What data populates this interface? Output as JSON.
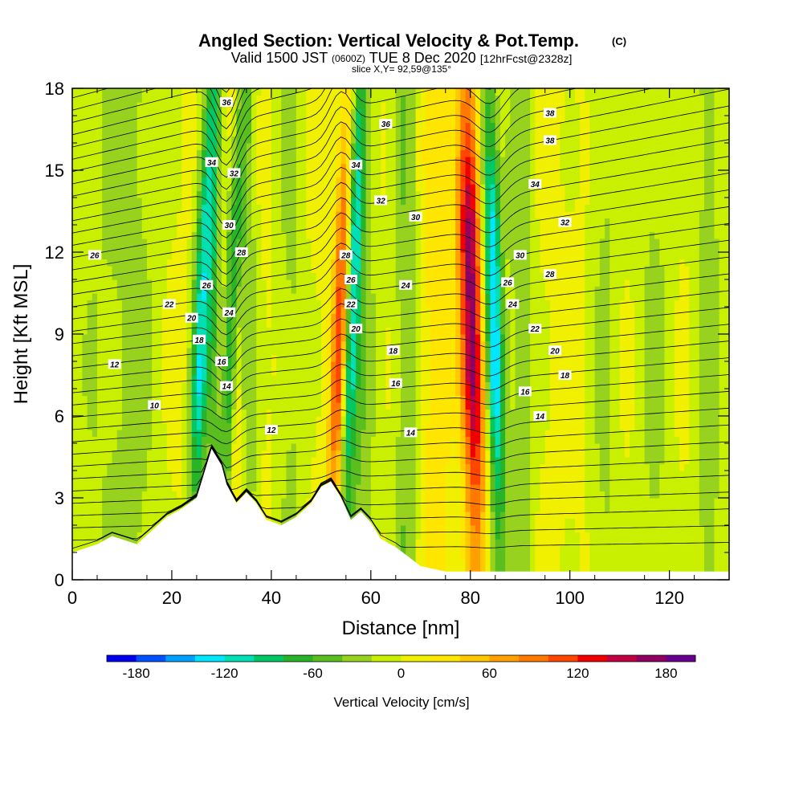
{
  "chart_data": {
    "type": "heatmap",
    "title": "Angled Section: Vertical Velocity & Pot.Temp.",
    "title_suffix": "(C)",
    "subtitle_parts": {
      "valid": "Valid 1500 JST",
      "zulu": "(0600Z)",
      "date": "TUE 8 Dec 2020",
      "fcst": "[12hrFcst@2328z]"
    },
    "slice": "slice X,Y= 92,59@135°",
    "xlabel": "Distance [nm]",
    "ylabel": "Height [Kft MSL]",
    "xlim": [
      0,
      132
    ],
    "ylim": [
      0,
      18
    ],
    "x_ticks": [
      "0",
      "20",
      "40",
      "60",
      "80",
      "100",
      "120"
    ],
    "y_ticks": [
      "0",
      "3",
      "6",
      "9",
      "12",
      "15",
      "18"
    ],
    "colorbar": {
      "label": "Vertical Velocity [cm/s]",
      "min": -200,
      "max": 200,
      "step": 20,
      "tick_labels": [
        "-180",
        "-120",
        "-60",
        "0",
        "60",
        "120",
        "180"
      ],
      "colors": [
        "#0000f0",
        "#0050ff",
        "#00a0ff",
        "#00e6ff",
        "#00e0b4",
        "#00c864",
        "#28b428",
        "#5abe1e",
        "#96d21e",
        "#c8f000",
        "#f0f000",
        "#ffe600",
        "#ffc800",
        "#ffa000",
        "#ff7800",
        "#ff4600",
        "#f00000",
        "#c00040",
        "#900060",
        "#6a0090"
      ]
    },
    "vertical_velocity_features": [
      {
        "x": 5,
        "w": 6,
        "v": -30
      },
      {
        "x": 13,
        "w": 5,
        "v": -40
      },
      {
        "x": 25,
        "w": 1.8,
        "v": -110
      },
      {
        "x": 28.5,
        "w": 1.2,
        "v": -70
      },
      {
        "x": 31,
        "w": 1.6,
        "v": -100
      },
      {
        "x": 33,
        "w": 1.8,
        "v": 70
      },
      {
        "x": 35,
        "w": 2,
        "v": -70
      },
      {
        "x": 44,
        "w": 3,
        "v": -40
      },
      {
        "x": 53,
        "w": 1.8,
        "v": 110
      },
      {
        "x": 55,
        "w": 1.5,
        "v": -110
      },
      {
        "x": 58,
        "w": 3,
        "v": -60
      },
      {
        "x": 67,
        "w": 2.5,
        "v": -60
      },
      {
        "x": 73,
        "w": 3,
        "v": 40
      },
      {
        "x": 81,
        "w": 2.3,
        "v": 150
      },
      {
        "x": 85.5,
        "w": 1.8,
        "v": -130
      },
      {
        "x": 90,
        "w": 3,
        "v": -50
      },
      {
        "x": 107,
        "w": 3,
        "v": -40
      },
      {
        "x": 117,
        "w": 4,
        "v": -40
      },
      {
        "x": 128,
        "w": 3,
        "v": -50
      }
    ],
    "terrain": [
      [
        0,
        1.0
      ],
      [
        5,
        1.3
      ],
      [
        8,
        1.6
      ],
      [
        13,
        1.3
      ],
      [
        16,
        1.8
      ],
      [
        19,
        2.3
      ],
      [
        22,
        2.6
      ],
      [
        25,
        3.0
      ],
      [
        28,
        4.8
      ],
      [
        30,
        4.2
      ],
      [
        31,
        3.5
      ],
      [
        33,
        2.8
      ],
      [
        35,
        3.2
      ],
      [
        37,
        2.8
      ],
      [
        39,
        2.2
      ],
      [
        42,
        2.0
      ],
      [
        45,
        2.3
      ],
      [
        48,
        2.8
      ],
      [
        50,
        3.4
      ],
      [
        52,
        3.6
      ],
      [
        54,
        3.0
      ],
      [
        56,
        2.2
      ],
      [
        58,
        2.5
      ],
      [
        60,
        2.1
      ],
      [
        62,
        1.5
      ],
      [
        65,
        1.2
      ],
      [
        70,
        0.5
      ],
      [
        75,
        0.3
      ],
      [
        80,
        0.3
      ],
      [
        100,
        0.3
      ],
      [
        132,
        0.3
      ]
    ],
    "contour_labels": [
      {
        "text": "36",
        "x": 31,
        "y": 17.5
      },
      {
        "text": "36",
        "x": 63,
        "y": 16.7
      },
      {
        "text": "38",
        "x": 96,
        "y": 17.1
      },
      {
        "text": "38",
        "x": 96,
        "y": 16.1
      },
      {
        "text": "34",
        "x": 28,
        "y": 15.3
      },
      {
        "text": "32",
        "x": 32.5,
        "y": 14.9
      },
      {
        "text": "34",
        "x": 57,
        "y": 15.2
      },
      {
        "text": "34",
        "x": 93,
        "y": 14.5
      },
      {
        "text": "32",
        "x": 62,
        "y": 13.9
      },
      {
        "text": "30",
        "x": 69,
        "y": 13.3
      },
      {
        "text": "32",
        "x": 99,
        "y": 13.1
      },
      {
        "text": "30",
        "x": 31.5,
        "y": 13.0
      },
      {
        "text": "28",
        "x": 34,
        "y": 12.0
      },
      {
        "text": "26",
        "x": 4.5,
        "y": 11.9
      },
      {
        "text": "28",
        "x": 55,
        "y": 11.9
      },
      {
        "text": "30",
        "x": 90,
        "y": 11.9
      },
      {
        "text": "28",
        "x": 96,
        "y": 11.2
      },
      {
        "text": "26",
        "x": 56,
        "y": 11.0
      },
      {
        "text": "26",
        "x": 27,
        "y": 10.8
      },
      {
        "text": "26",
        "x": 87.5,
        "y": 10.9
      },
      {
        "text": "24",
        "x": 67,
        "y": 10.8
      },
      {
        "text": "22",
        "x": 19.5,
        "y": 10.1
      },
      {
        "text": "22",
        "x": 56,
        "y": 10.1
      },
      {
        "text": "24",
        "x": 88.5,
        "y": 10.1
      },
      {
        "text": "24",
        "x": 31.5,
        "y": 9.8
      },
      {
        "text": "20",
        "x": 24,
        "y": 9.6
      },
      {
        "text": "20",
        "x": 57,
        "y": 9.2
      },
      {
        "text": "22",
        "x": 93,
        "y": 9.2
      },
      {
        "text": "18",
        "x": 25.5,
        "y": 8.8
      },
      {
        "text": "20",
        "x": 97,
        "y": 8.4
      },
      {
        "text": "18",
        "x": 64.5,
        "y": 8.4
      },
      {
        "text": "16",
        "x": 30,
        "y": 8.0
      },
      {
        "text": "12",
        "x": 8.5,
        "y": 7.9
      },
      {
        "text": "18",
        "x": 99,
        "y": 7.5
      },
      {
        "text": "16",
        "x": 65,
        "y": 7.2
      },
      {
        "text": "14",
        "x": 31,
        "y": 7.1
      },
      {
        "text": "16",
        "x": 91,
        "y": 6.9
      },
      {
        "text": "10",
        "x": 16.5,
        "y": 6.4
      },
      {
        "text": "14",
        "x": 94,
        "y": 6.0
      },
      {
        "text": "12",
        "x": 40,
        "y": 5.5
      },
      {
        "text": "14",
        "x": 68,
        "y": 5.4
      }
    ]
  }
}
